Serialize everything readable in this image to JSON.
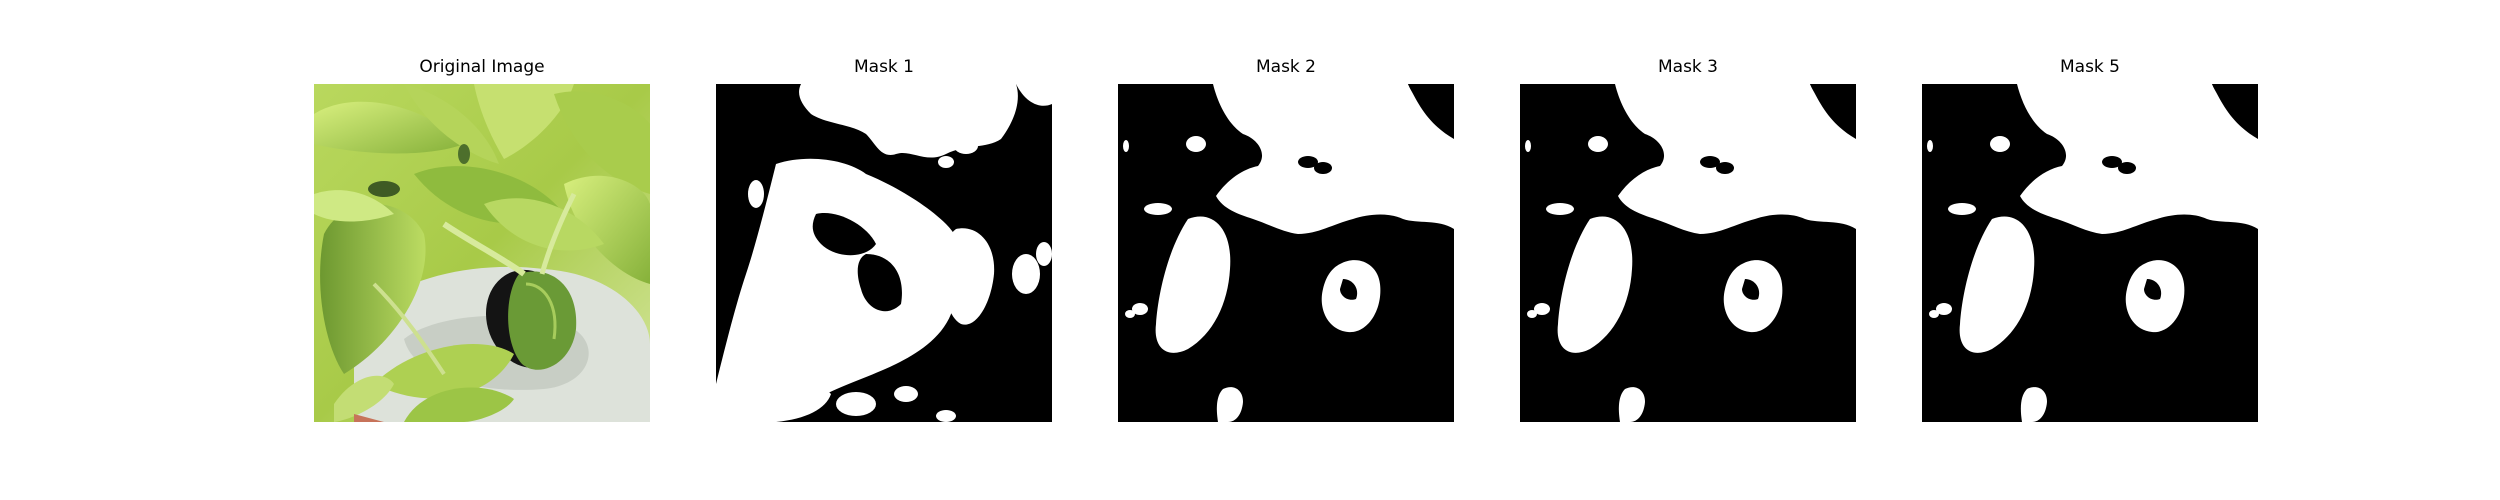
{
  "panels": [
    {
      "title": "Original Image"
    },
    {
      "title": "Mask 1"
    },
    {
      "title": "Mask 2"
    },
    {
      "title": "Mask 3"
    },
    {
      "title": "Mask 5"
    }
  ],
  "colors": {
    "mask_background": "#000000",
    "mask_foreground": "#ffffff",
    "leaf_light": "#c9e46a",
    "leaf_mid": "#9cc23c",
    "leaf_dark": "#5f8a2a",
    "pot_white": "#dfe3dc",
    "pot_hole": "#111111"
  }
}
